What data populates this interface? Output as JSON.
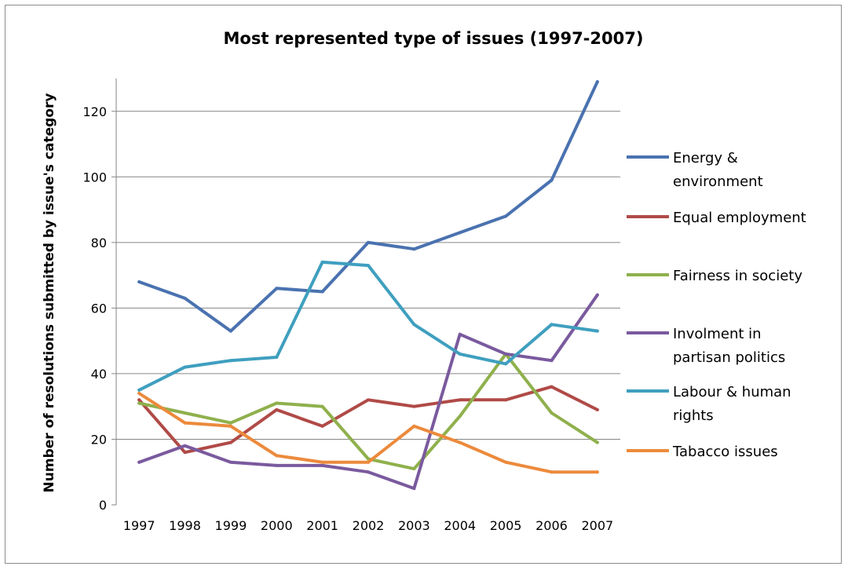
{
  "chart_data": {
    "type": "line",
    "title": "Most represented type of issues (1997-2007)",
    "xlabel": "",
    "ylabel": "Number of resolutions submitted by issue's category",
    "categories": [
      "1997",
      "1998",
      "1999",
      "2000",
      "2001",
      "2002",
      "2003",
      "2004",
      "2005",
      "2006",
      "2007"
    ],
    "ylim": [
      0,
      130
    ],
    "yticks": [
      0,
      20,
      40,
      60,
      80,
      100,
      120
    ],
    "grid": "horizontal",
    "legend_position": "right",
    "series": [
      {
        "name": "Energy & environment",
        "legend_lines": [
          "Energy &",
          "environment"
        ],
        "color": "#4a72b0",
        "values": [
          68,
          63,
          53,
          66,
          65,
          80,
          78,
          83,
          88,
          99,
          129
        ]
      },
      {
        "name": "Equal employment",
        "legend_lines": [
          "Equal employment"
        ],
        "color": "#b04a47",
        "values": [
          32,
          16,
          19,
          29,
          24,
          32,
          30,
          32,
          32,
          36,
          29
        ]
      },
      {
        "name": "Fairness in society",
        "legend_lines": [
          "Fairness in society"
        ],
        "color": "#8fb04c",
        "values": [
          31,
          28,
          25,
          31,
          30,
          14,
          11,
          27,
          46,
          28,
          19
        ]
      },
      {
        "name": "Involment in partisan politics",
        "legend_lines": [
          "Involment in",
          "partisan politics"
        ],
        "color": "#7a5a9e",
        "values": [
          13,
          18,
          13,
          12,
          12,
          10,
          5,
          52,
          46,
          44,
          64
        ]
      },
      {
        "name": "Labour & human rights",
        "legend_lines": [
          "Labour & human",
          "rights"
        ],
        "color": "#3f9fbf",
        "values": [
          35,
          42,
          44,
          45,
          74,
          73,
          55,
          46,
          43,
          55,
          53
        ]
      },
      {
        "name": "Tabacco issues",
        "legend_lines": [
          "Tabacco issues"
        ],
        "color": "#ec8a3c",
        "values": [
          34,
          25,
          24,
          15,
          13,
          13,
          24,
          19,
          13,
          10,
          10
        ]
      }
    ]
  }
}
